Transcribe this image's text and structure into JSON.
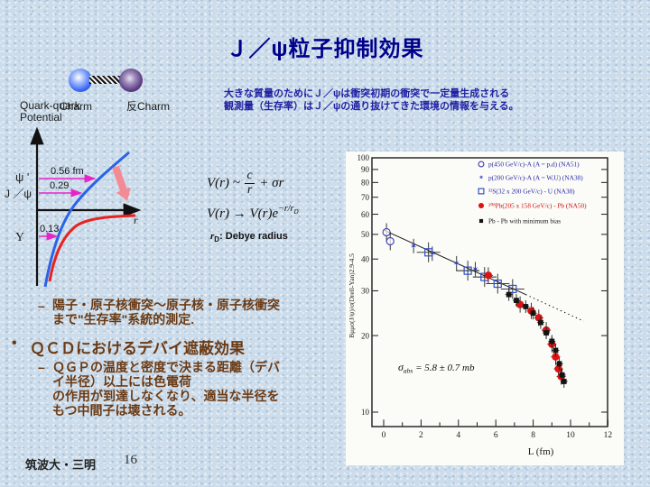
{
  "colors": {
    "title": "#00008b",
    "intro": "#2121a3",
    "notes": "#6b3a14",
    "magenta_accent": "#e625c9",
    "curve_blue": "#2b63e8",
    "curve_red": "#e82222"
  },
  "slide": {
    "title": "Ｊ／ψ粒子抑制効果",
    "intro": [
      "大きな質量のためにＪ／ψは衝突初期の衝突で一定量生成される",
      "観測量（生存率）はＪ／ψの通り抜けてきた環境の情報を与える。"
    ],
    "footer_affiliation": "筑波大・三明",
    "footer_page": "16"
  },
  "molecule": {
    "left": "Charm",
    "right": "反Charm"
  },
  "potential": {
    "axis_title_line1": "Quark-quark",
    "axis_title_line2": "Potential",
    "x_label": "r",
    "levels": [
      {
        "state": "ψ '",
        "value": "0.56 fm"
      },
      {
        "state": "J ／ψ",
        "value": "0.29"
      },
      {
        "state": "Υ",
        "value": "0.13"
      }
    ]
  },
  "equations": {
    "eq1_lhs": "V(r) ~",
    "eq1_num": "c",
    "eq1_den": "r",
    "eq1_tail": "+ σr",
    "eq2_main": "V(r) → V(r)e",
    "eq2_exp": "−r/r",
    "eq2_exp_sub": "D",
    "debye_sym": "r",
    "debye_sub": "D",
    "debye_rest": ":  Debye radius"
  },
  "notes": {
    "dash_glyph": "–",
    "bullet_glyph": "•",
    "item1_lines": [
      "陽子・原子核衝突～原子核・原子核衝突",
      "まで\"生存率\"系統的測定."
    ],
    "heading": "ＱＣＤにおけるデバイ遮蔽効果",
    "item2_lines": [
      "ＱＧＰの温度と密度で決まる距離（デバ",
      "イ半径）以上には色電荷",
      "の作用が到達しなくなり、適当な半径を",
      "もつ中間子は壊される。"
    ]
  },
  "chart_data": {
    "type": "scatter",
    "y_scale": "log",
    "xlabel": "L (fm)",
    "ylabel": "Bμμσ(J/ψ)/σ(Drell-Yan)2.9-4.5",
    "axes": {
      "x_ticks": [
        0,
        2,
        4,
        6,
        8,
        10,
        12
      ],
      "x_minor_step": 1,
      "x_range": [
        -1,
        12
      ],
      "y_ticks": [
        10,
        20,
        30,
        40,
        50,
        60,
        70,
        80,
        90,
        100
      ],
      "y_range": [
        8.7,
        100
      ]
    },
    "annotation": {
      "sym": "σ",
      "sub": "abs",
      "rest": " = 5.8 ± 0.7 mb"
    },
    "fit_line": {
      "solid": [
        [
          0,
          52
        ],
        [
          7.6,
          29
        ]
      ],
      "dotted": [
        [
          7.6,
          29
        ],
        [
          10.7,
          22.8
        ]
      ]
    },
    "series": [
      {
        "name": "p(450 GeV/c)-A (A = p,d) (NA51)",
        "marker": "open-circle",
        "color": "#4747bb",
        "label_color": "#2828aa",
        "points": [
          [
            0.15,
            51
          ],
          [
            0.35,
            47
          ]
        ]
      },
      {
        "name": "p(200 GeV/c)-A (A = W,U) (NA38)",
        "marker": "star",
        "color": "#2a38bb",
        "label_color": "#2828aa",
        "points": [
          [
            1.6,
            45
          ],
          [
            2.6,
            42
          ],
          [
            3.9,
            38.5
          ],
          [
            4.9,
            36.5
          ]
        ]
      },
      {
        "name": "³²S(32 x 200 GeV/c) - U (NA38)",
        "marker": "open-square",
        "color": "#3350cc",
        "label_color": "#2828aa",
        "points": [
          [
            2.4,
            42.5
          ],
          [
            4.5,
            36
          ],
          [
            5.4,
            34
          ],
          [
            6.1,
            32
          ],
          [
            6.9,
            30.5
          ]
        ]
      },
      {
        "name": "²⁰⁸Pb(205 x 158 GeV/c) - Pb (NA50)",
        "marker": "filled-circle",
        "color": "#dd1212",
        "label_color": "#cc1111",
        "points": [
          [
            5.6,
            34.5
          ],
          [
            7.3,
            26.5
          ],
          [
            7.9,
            25
          ],
          [
            8.3,
            23.5
          ],
          [
            8.7,
            21
          ],
          [
            9.0,
            18.5
          ],
          [
            9.2,
            16.5
          ],
          [
            9.35,
            14.8
          ],
          [
            9.5,
            13.8
          ]
        ]
      },
      {
        "name": "Pb - Pb with minimum bias",
        "marker": "filled-square",
        "color": "#141414",
        "label_color": "#141414",
        "points": [
          [
            6.7,
            29
          ],
          [
            7.1,
            27.5
          ],
          [
            7.6,
            26
          ],
          [
            8.0,
            24.5
          ],
          [
            8.4,
            22.5
          ],
          [
            8.7,
            20.5
          ],
          [
            9.0,
            19
          ],
          [
            9.2,
            17.5
          ],
          [
            9.4,
            15.5
          ],
          [
            9.55,
            14
          ],
          [
            9.65,
            13.2
          ]
        ]
      }
    ]
  }
}
